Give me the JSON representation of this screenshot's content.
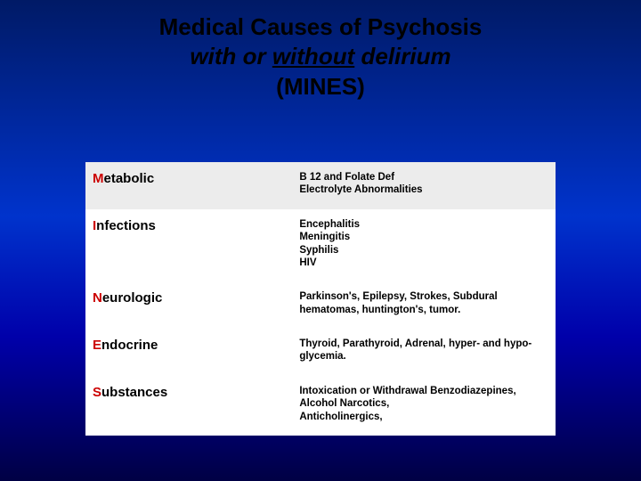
{
  "title": {
    "line1": "Medical  Causes  of  Psychosis",
    "line2_prefix": "with  or  ",
    "line2_underlined": "without",
    "line2_suffix": "  delirium",
    "line3": "(MINES)"
  },
  "table": {
    "rows": [
      {
        "category_highlight": "M",
        "category_rest": "etabolic",
        "details": "B 12 and Folate Def\nElectrolyte Abnormalities",
        "shaded": true
      },
      {
        "category_highlight": "I",
        "category_rest": "nfections",
        "details": "Encephalitis\nMeningitis\nSyphilis\nHIV",
        "shaded": false
      },
      {
        "category_highlight": "N",
        "category_rest": "eurologic",
        "details": "Parkinson's, Epilepsy, Strokes, Subdural hematomas, huntington's, tumor.",
        "shaded": false
      },
      {
        "category_highlight": "E",
        "category_rest": "ndocrine",
        "details": "Thyroid, Parathyroid, Adrenal, hyper- and hypo- glycemia.",
        "shaded": false
      },
      {
        "category_highlight": "S",
        "category_rest": "ubstances",
        "details": "Intoxication or Withdrawal Benzodiazepines, Alcohol Narcotics,\nAnticholinergics,",
        "shaded": false
      }
    ]
  },
  "colors": {
    "highlight": "#cc0000",
    "text": "#000000",
    "row_shade": "#ececec",
    "table_bg": "#ffffff"
  }
}
